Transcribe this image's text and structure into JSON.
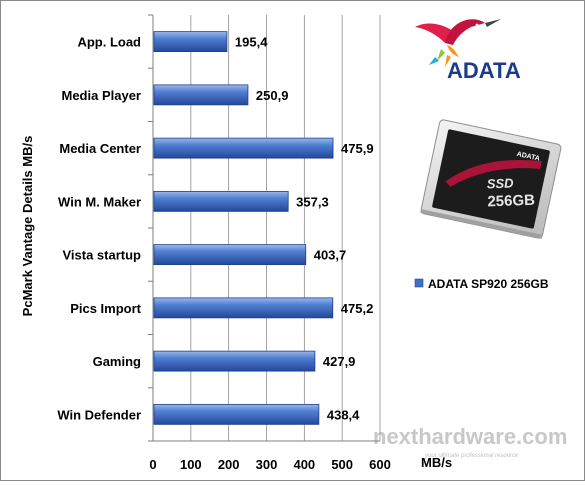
{
  "chart_data": {
    "type": "bar",
    "orientation": "horizontal",
    "categories": [
      "App. Load",
      "Media Player",
      "Media Center",
      "Win M. Maker",
      "Vista startup",
      "Pics Import",
      "Gaming",
      "Win Defender"
    ],
    "series": [
      {
        "name": "ADATA SP920  256GB",
        "values": [
          195.4,
          250.9,
          475.9,
          357.3,
          403.7,
          475.2,
          427.9,
          438.4
        ],
        "value_labels": [
          "195,4",
          "250,9",
          "475,9",
          "357,3",
          "403,7",
          "475,2",
          "427,9",
          "438,4"
        ],
        "color": "#3f6fc4"
      }
    ],
    "xlabel": "MB/s",
    "ylabel": "PcMark Vantage Details MB/s",
    "xlim": [
      0,
      600
    ],
    "xticks": [
      "0",
      "100",
      "200",
      "300",
      "400",
      "500",
      "600"
    ],
    "grid": true,
    "legend_position": "right"
  },
  "branding": {
    "logo_text": "ADATA",
    "logo_colors": [
      "#e0204a",
      "#f7941d",
      "#8dc63f",
      "#1a3c8c"
    ],
    "product_label": "ADATA",
    "ssd_badge": "SSD",
    "ssd_capacity": "256GB"
  },
  "watermark": {
    "text": "nexthardware.com",
    "subtext": "your ultimate professional resource"
  }
}
